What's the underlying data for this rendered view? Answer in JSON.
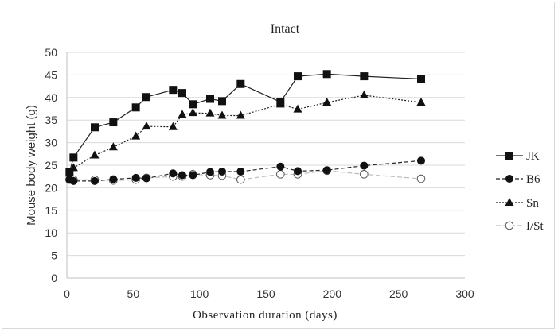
{
  "chart_data": {
    "type": "line",
    "title": "Intact",
    "xlabel": "Observation duration  (days)",
    "ylabel": "Mouse body weight (g)",
    "xlim": [
      0,
      300
    ],
    "ylim": [
      0,
      50
    ],
    "xticks": [
      "0",
      "50",
      "100",
      "150",
      "200",
      "250",
      "300"
    ],
    "yticks": [
      "0",
      "5",
      "10",
      "15",
      "20",
      "25",
      "30",
      "35",
      "40",
      "45",
      "50"
    ],
    "grid": "horizontal",
    "legend_position": "right",
    "series": [
      {
        "name": "JK",
        "marker": "square-filled",
        "line": "solid",
        "x": [
          2,
          5,
          21,
          35,
          52,
          60,
          80,
          87,
          95,
          108,
          117,
          131,
          161,
          174,
          196,
          224,
          267
        ],
        "y": [
          23.5,
          26.7,
          33.4,
          34.5,
          37.8,
          40.1,
          41.7,
          41.0,
          38.5,
          39.7,
          39.2,
          43.0,
          39.0,
          44.7,
          45.2,
          44.7,
          44.1
        ]
      },
      {
        "name": "B6",
        "marker": "circle-filled",
        "line": "dashed",
        "x": [
          2,
          5,
          21,
          35,
          52,
          60,
          80,
          87,
          95,
          108,
          117,
          131,
          161,
          174,
          196,
          224,
          267
        ],
        "y": [
          21.8,
          21.5,
          21.5,
          21.9,
          22.2,
          22.1,
          23.2,
          22.8,
          22.8,
          23.5,
          23.6,
          23.6,
          24.7,
          23.7,
          23.9,
          24.9,
          26.0
        ]
      },
      {
        "name": "Sn",
        "marker": "triangle-filled",
        "line": "dotted",
        "x": [
          2,
          5,
          21,
          35,
          52,
          60,
          80,
          87,
          95,
          108,
          117,
          131,
          161,
          174,
          196,
          224,
          267
        ],
        "y": [
          23.2,
          24.4,
          27.2,
          29.0,
          31.4,
          33.6,
          33.5,
          36.2,
          36.6,
          36.5,
          36.0,
          36.0,
          38.5,
          37.4,
          38.9,
          40.5,
          38.9
        ]
      },
      {
        "name": "I/St",
        "marker": "circle-open",
        "line": "dashed-light",
        "x": [
          2,
          5,
          21,
          35,
          52,
          60,
          80,
          87,
          95,
          108,
          117,
          131,
          161,
          174,
          196,
          224,
          267
        ],
        "y": [
          21.8,
          21.8,
          21.8,
          21.6,
          21.8,
          22.2,
          22.5,
          22.5,
          23.0,
          22.8,
          22.7,
          21.8,
          23.0,
          23.0,
          23.8,
          23.0,
          22.0
        ]
      }
    ]
  }
}
